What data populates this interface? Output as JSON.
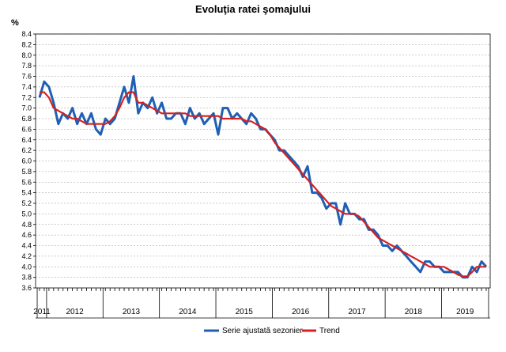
{
  "chart_data": {
    "type": "line",
    "title": "Evoluţia ratei şomajului",
    "ylabel": "%",
    "ylim": [
      3.6,
      8.4
    ],
    "ytick_step": 0.2,
    "grid": true,
    "legend_position": "bottom",
    "x_start": "2011-11",
    "x_end": "2019-10",
    "years": [
      "2011",
      "2012",
      "2013",
      "2014",
      "2015",
      "2016",
      "2017",
      "2018",
      "2019"
    ],
    "series": [
      {
        "name": "Serie ajustată sezonier",
        "color": "#1f5fb4",
        "values": [
          7.2,
          7.5,
          7.4,
          7.1,
          6.7,
          6.9,
          6.8,
          7.0,
          6.7,
          6.9,
          6.7,
          6.9,
          6.6,
          6.5,
          6.8,
          6.7,
          6.8,
          7.1,
          7.4,
          7.1,
          7.6,
          6.9,
          7.1,
          7.0,
          7.2,
          6.9,
          7.1,
          6.8,
          6.8,
          6.9,
          6.9,
          6.7,
          7.0,
          6.8,
          6.9,
          6.7,
          6.8,
          6.9,
          6.5,
          7.0,
          7.0,
          6.8,
          6.9,
          6.8,
          6.7,
          6.9,
          6.8,
          6.6,
          6.6,
          6.5,
          6.4,
          6.2,
          6.2,
          6.1,
          6.0,
          5.9,
          5.7,
          5.9,
          5.4,
          5.4,
          5.3,
          5.1,
          5.2,
          5.2,
          4.8,
          5.2,
          5.0,
          5.0,
          4.9,
          4.9,
          4.7,
          4.7,
          4.6,
          4.4,
          4.4,
          4.3,
          4.4,
          4.3,
          4.2,
          4.1,
          4.0,
          3.9,
          4.1,
          4.1,
          4.0,
          4.0,
          3.9,
          3.9,
          3.9,
          3.9,
          3.8,
          3.8,
          4.0,
          3.9,
          4.1,
          4.0
        ]
      },
      {
        "name": "Trend",
        "color": "#d62021",
        "values": [
          7.3,
          7.3,
          7.2,
          7.0,
          6.95,
          6.9,
          6.85,
          6.8,
          6.8,
          6.75,
          6.7,
          6.7,
          6.7,
          6.7,
          6.7,
          6.75,
          6.85,
          7.0,
          7.2,
          7.3,
          7.3,
          7.1,
          7.1,
          7.05,
          7.0,
          6.95,
          6.9,
          6.9,
          6.9,
          6.9,
          6.9,
          6.9,
          6.85,
          6.85,
          6.85,
          6.85,
          6.85,
          6.85,
          6.85,
          6.8,
          6.8,
          6.8,
          6.8,
          6.8,
          6.75,
          6.75,
          6.7,
          6.65,
          6.6,
          6.5,
          6.35,
          6.25,
          6.15,
          6.05,
          5.95,
          5.85,
          5.75,
          5.65,
          5.55,
          5.45,
          5.35,
          5.25,
          5.15,
          5.1,
          5.05,
          5.0,
          5.0,
          5.0,
          4.95,
          4.85,
          4.75,
          4.65,
          4.55,
          4.5,
          4.45,
          4.4,
          4.35,
          4.3,
          4.25,
          4.2,
          4.15,
          4.1,
          4.05,
          4.0,
          4.0,
          4.0,
          4.0,
          3.95,
          3.9,
          3.85,
          3.82,
          3.82,
          3.9,
          4.0,
          4.0,
          4.0
        ]
      }
    ]
  }
}
